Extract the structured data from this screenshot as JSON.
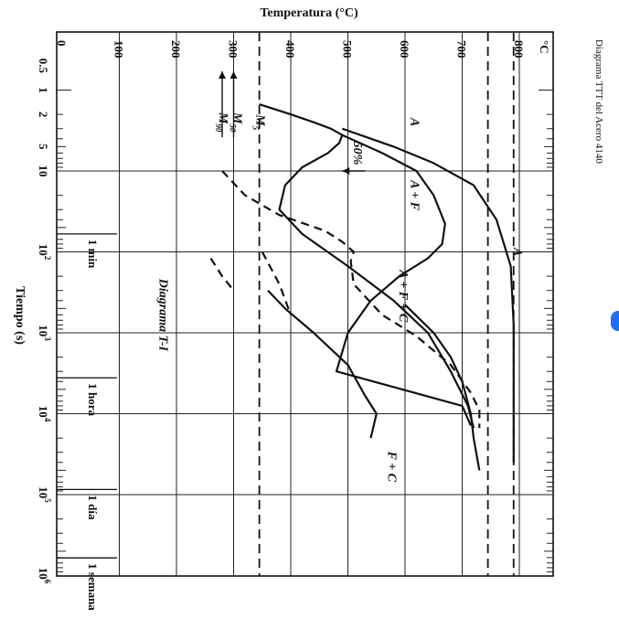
{
  "page": {
    "side_title": "Diagrama TTT del Acero 4140",
    "accent_color": "#1f6ff2"
  },
  "chart_data": {
    "type": "line",
    "title": "",
    "xlabel": "Tiempo (s)",
    "ylabel": "Temperatura (°C)",
    "y_unit_label": "°C",
    "x_scale": "log",
    "xlim": [
      0.5,
      1000000
    ],
    "ylim": [
      0,
      850
    ],
    "x_ticks": [
      {
        "value": 0.5,
        "label": "0.5"
      },
      {
        "value": 1,
        "label": "1"
      },
      {
        "value": 2,
        "label": "2"
      },
      {
        "value": 5,
        "label": "5"
      },
      {
        "value": 10,
        "label": "10"
      },
      {
        "value": 100,
        "label": "10",
        "sup": "2"
      },
      {
        "value": 1000,
        "label": "10",
        "sup": "3"
      },
      {
        "value": 10000,
        "label": "10",
        "sup": "4"
      },
      {
        "value": 100000,
        "label": "10",
        "sup": "5"
      },
      {
        "value": 1000000,
        "label": "10",
        "sup": "6"
      }
    ],
    "y_ticks": [
      0,
      100,
      200,
      300,
      400,
      500,
      600,
      700,
      800
    ],
    "time_markers": [
      {
        "value": 60,
        "label": "1 min"
      },
      {
        "value": 3600,
        "label": "1 hora"
      },
      {
        "value": 86400,
        "label": "1 día"
      },
      {
        "value": 604800,
        "label": "1 semana"
      }
    ],
    "grid": true,
    "reference_lines": [
      {
        "label": "A",
        "temperature": 790,
        "style": "dashed"
      },
      {
        "label": "",
        "temperature": 745,
        "style": "dashed"
      },
      {
        "label": "M5",
        "temperature": 345,
        "style": "dashed"
      },
      {
        "label": "M50",
        "temperature": 300,
        "style": "arrow"
      },
      {
        "label": "M90",
        "temperature": 280,
        "style": "arrow"
      }
    ],
    "series": [
      {
        "style": "solid",
        "points": [
          [
            1.5,
            345
          ],
          [
            2,
            400
          ],
          [
            2.5,
            440
          ],
          [
            3,
            470
          ],
          [
            3.6,
            490
          ],
          [
            4.5,
            485
          ],
          [
            6,
            465
          ],
          [
            9,
            420
          ],
          [
            15,
            390
          ],
          [
            30,
            380
          ],
          [
            60,
            420
          ],
          [
            150,
            500
          ],
          [
            400,
            580
          ],
          [
            1000,
            640
          ],
          [
            3000,
            680
          ],
          [
            8000,
            710
          ],
          [
            15000,
            720
          ]
        ]
      },
      {
        "style": "solid",
        "points": [
          [
            3.6,
            490
          ],
          [
            6,
            560
          ],
          [
            10,
            620
          ],
          [
            20,
            650
          ],
          [
            45,
            670
          ],
          [
            80,
            665
          ],
          [
            120,
            640
          ],
          [
            200,
            590
          ],
          [
            400,
            540
          ],
          [
            1000,
            500
          ],
          [
            3000,
            480
          ],
          [
            8000,
            700
          ],
          [
            14000,
            715
          ]
        ]
      },
      {
        "style": "dashed",
        "points": [
          [
            10,
            280
          ],
          [
            20,
            320
          ],
          [
            35,
            380
          ],
          [
            55,
            460
          ],
          [
            75,
            490
          ],
          [
            100,
            510
          ],
          [
            130,
            505
          ],
          [
            250,
            510
          ],
          [
            600,
            560
          ],
          [
            1100,
            620
          ],
          [
            2500,
            680
          ],
          [
            5500,
            715
          ],
          [
            9000,
            730
          ],
          [
            15000,
            730
          ]
        ]
      },
      {
        "style": "solid",
        "points": [
          [
            3,
            490
          ],
          [
            5,
            580
          ],
          [
            8,
            650
          ],
          [
            15,
            720
          ],
          [
            40,
            760
          ],
          [
            150,
            785
          ],
          [
            800,
            790
          ],
          [
            5000,
            790
          ],
          [
            20000,
            790
          ],
          [
            40000,
            790
          ]
        ]
      },
      {
        "style": "dashed",
        "points": [
          [
            100,
            350
          ],
          [
            250,
            380
          ],
          [
            600,
            400
          ]
        ]
      },
      {
        "style": "solid",
        "points": [
          [
            300,
            360
          ],
          [
            500,
            390
          ],
          [
            1000,
            440
          ],
          [
            2500,
            500
          ],
          [
            6000,
            530
          ],
          [
            10000,
            550
          ],
          [
            20000,
            540
          ]
        ]
      },
      {
        "style": "dashed",
        "points": [
          [
            120,
            260
          ],
          [
            200,
            280
          ],
          [
            300,
            300
          ]
        ]
      },
      {
        "style": "solid",
        "points": [
          [
            450,
            600
          ],
          [
            1000,
            650
          ],
          [
            2000,
            680
          ],
          [
            4000,
            700
          ],
          [
            10000,
            715
          ],
          [
            20000,
            720
          ],
          [
            50000,
            730
          ]
        ]
      }
    ],
    "region_labels": [
      {
        "text": "A",
        "x": 2.5,
        "y": 610
      },
      {
        "text": "A",
        "x": 100,
        "y": 790
      },
      {
        "text": "A + F",
        "x": 20,
        "y": 610
      },
      {
        "text": "A + F + C",
        "x": 350,
        "y": 590
      },
      {
        "text": "F + C",
        "x": 45000,
        "y": 570
      },
      {
        "text": "50%",
        "x": 6,
        "y": 510
      },
      {
        "text": "M",
        "sub": "5",
        "x": 2.5,
        "y": 340
      },
      {
        "text": "M",
        "sub": "50",
        "x": 2.5,
        "y": 300
      },
      {
        "text": "M",
        "sub": "90",
        "x": 2.5,
        "y": 275
      },
      {
        "text": "Diagrama T-I",
        "x": 600,
        "y": 170
      }
    ]
  }
}
